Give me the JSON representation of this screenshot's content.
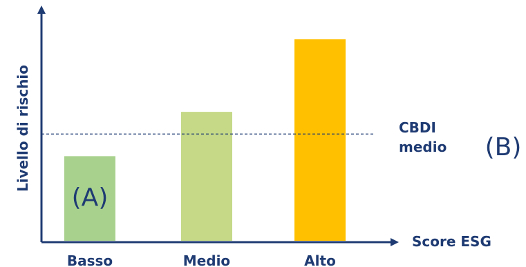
{
  "chart_data": {
    "type": "bar",
    "xlabel": "Score ESG",
    "ylabel": "Livello di rischio",
    "categories": [
      "Basso",
      "Medio",
      "Alto"
    ],
    "values": [
      42,
      64,
      100
    ],
    "colors": [
      "#a9d18e",
      "#c5d987",
      "#ffc000"
    ],
    "reference_line": {
      "label_line1": "CBDI",
      "label_line2": "medio",
      "value": 53,
      "style": "dashed",
      "color": "#1f3b73"
    },
    "annotations": [
      {
        "text": "(A)",
        "target": "Basso"
      },
      {
        "text": "(B)",
        "target": "reference_line"
      }
    ],
    "ylim": [
      0,
      100
    ],
    "grid": false,
    "legend": "none"
  },
  "colors": {
    "axis": "#1f3b73",
    "text": "#1f3b73"
  }
}
